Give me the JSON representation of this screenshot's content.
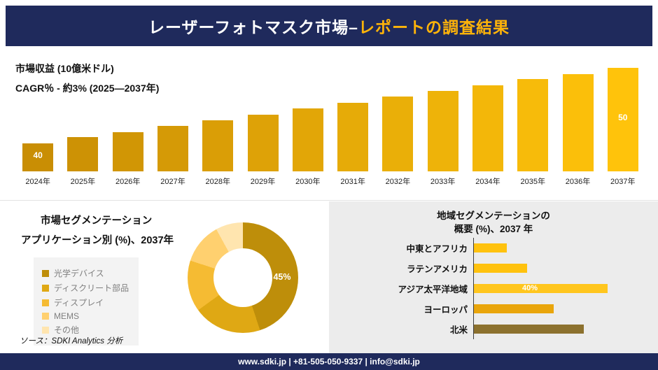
{
  "colors": {
    "banner_bg": "#1F2A5C",
    "banner_text": "#FFFFFF",
    "banner_accent": "#FFB409",
    "footer_bg": "#1F2A5C",
    "footer_text": "#FFFFFF",
    "revenue_bar_start": "#C98E04",
    "revenue_bar_end": "#FFC30B",
    "right_panel_bg": "#ECECEC",
    "legend_bg": "#F3F3F3"
  },
  "header": {
    "title_main": "レーザーフォトマスク市場–",
    "title_accent": "レポートの調査結果"
  },
  "footer": {
    "text": "www.sdki.jp | +81-505-050-9337 | info@sdki.jp"
  },
  "source_note": "ソース：SDKI Analytics 分析",
  "chart_data": [
    {
      "type": "bar",
      "title": "市場収益 (10億米ドル)",
      "subtitle": "CAGR％ - 約3% (2025―2037年)",
      "categories": [
        "2024年",
        "2025年",
        "2026年",
        "2027年",
        "2028年",
        "2029年",
        "2030年",
        "2031年",
        "2032年",
        "2033年",
        "2034年",
        "2035年",
        "2036年",
        "2037年"
      ],
      "values": [
        40,
        40.8,
        41.5,
        42.3,
        43.1,
        43.8,
        44.6,
        45.4,
        46.2,
        46.9,
        47.7,
        48.5,
        49.2,
        50
      ],
      "ylim": [
        40,
        50
      ],
      "value_axis_visible": false,
      "data_labels": [
        {
          "index": 0,
          "text": "40"
        },
        {
          "index": 13,
          "text": "50"
        }
      ]
    },
    {
      "type": "pie",
      "donut": true,
      "title": "市場セグメンテーション",
      "subtitle": "アプリケーション別 (%)、2037年",
      "legend_position": "left",
      "slices": [
        {
          "label": "光学デバイス",
          "value": 45,
          "color": "#BE8E0A",
          "data_label": "45%"
        },
        {
          "label": "ディスクリート部品",
          "value": 20,
          "color": "#DFA814",
          "data_label": ""
        },
        {
          "label": "ディスプレイ",
          "value": 15,
          "color": "#F5BB33",
          "data_label": ""
        },
        {
          "label": "MEMS",
          "value": 12,
          "color": "#FFD06F",
          "data_label": ""
        },
        {
          "label": "その他",
          "value": 8,
          "color": "#FFE5AF",
          "data_label": ""
        }
      ]
    },
    {
      "type": "bar_horizontal",
      "title": "地域セグメンテーションの概要 (%)、2037 年",
      "title_lines": [
        "地域セグメンテーションの",
        "概要 (%)、2037 年"
      ],
      "categories": [
        "中東とアフリカ",
        "ラテンアメリカ",
        "アジア太平洋地域",
        "ヨーロッパ",
        "北米"
      ],
      "values": [
        10,
        16,
        40,
        24,
        33
      ],
      "colors": [
        "#FFC20E",
        "#FFC20E",
        "#FFC61E",
        "#E9A50B",
        "#8C712E"
      ],
      "xlim": [
        0,
        45
      ],
      "data_labels": [
        {
          "index": 2,
          "text": "40%"
        }
      ]
    }
  ]
}
